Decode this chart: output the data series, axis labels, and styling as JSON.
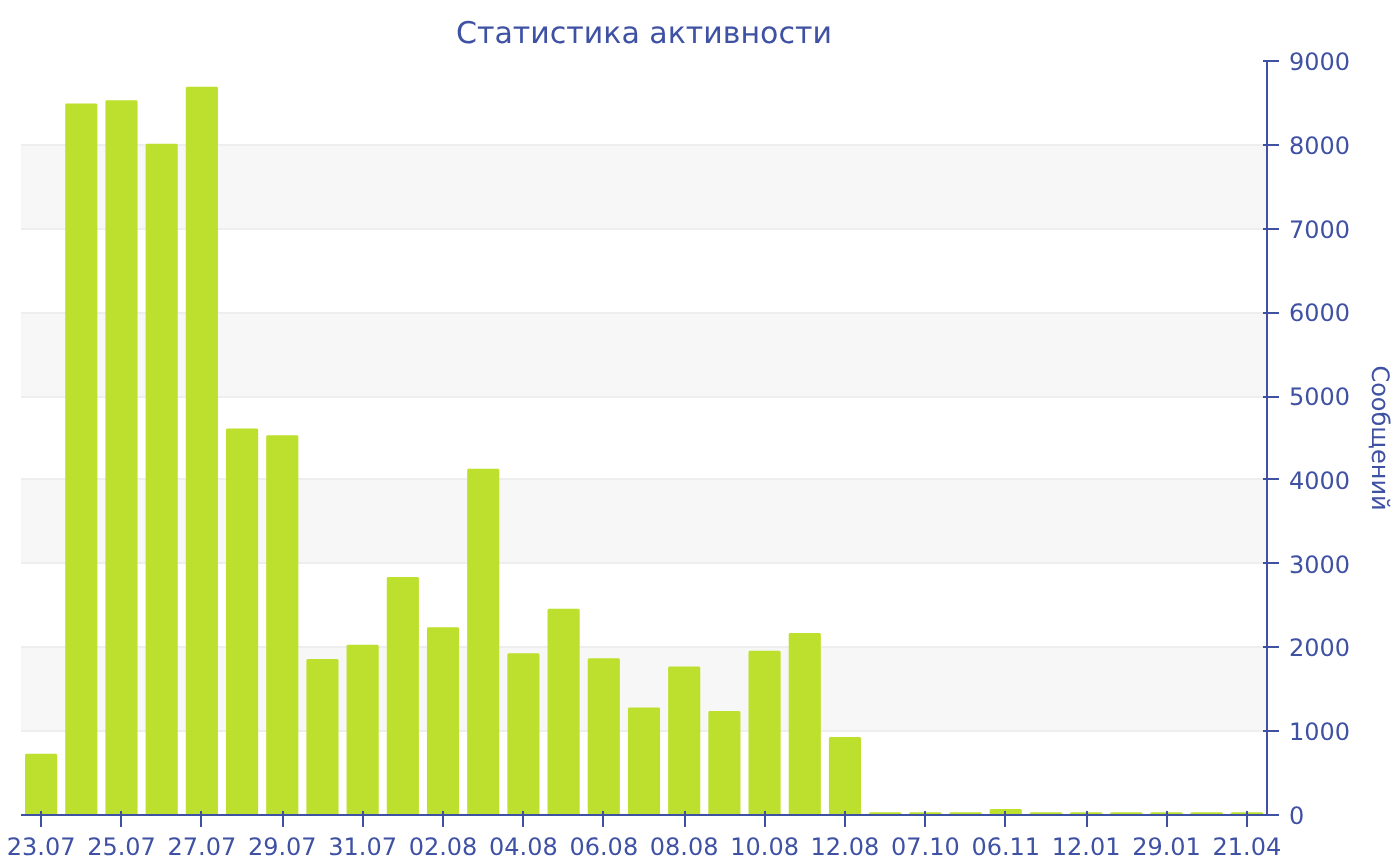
{
  "chart_data": {
    "type": "bar",
    "title": "Статистика активности",
    "ylabel": "Сообщений",
    "categories": [
      "23.07",
      null,
      "25.07",
      null,
      "27.07",
      null,
      "29.07",
      null,
      "31.07",
      null,
      "02.08",
      null,
      "04.08",
      null,
      "06.08",
      null,
      "08.08",
      null,
      "10.08",
      null,
      "12.08",
      null,
      "07.10",
      null,
      "06.11",
      null,
      "12.01",
      null,
      "29.01",
      null,
      "21.04"
    ],
    "values": [
      720,
      8480,
      8520,
      8000,
      8680,
      4600,
      4520,
      1850,
      2020,
      2830,
      2230,
      4120,
      1920,
      2450,
      1860,
      1270,
      1760,
      1230,
      1950,
      2160,
      920,
      20,
      20,
      20,
      60,
      20,
      20,
      20,
      20,
      20,
      20
    ],
    "color": "#bde02e",
    "ylim": [
      0,
      9000
    ],
    "yticks": [
      0,
      1000,
      2000,
      3000,
      4000,
      5000,
      6000,
      7000,
      8000,
      9000
    ],
    "grid": "y"
  }
}
